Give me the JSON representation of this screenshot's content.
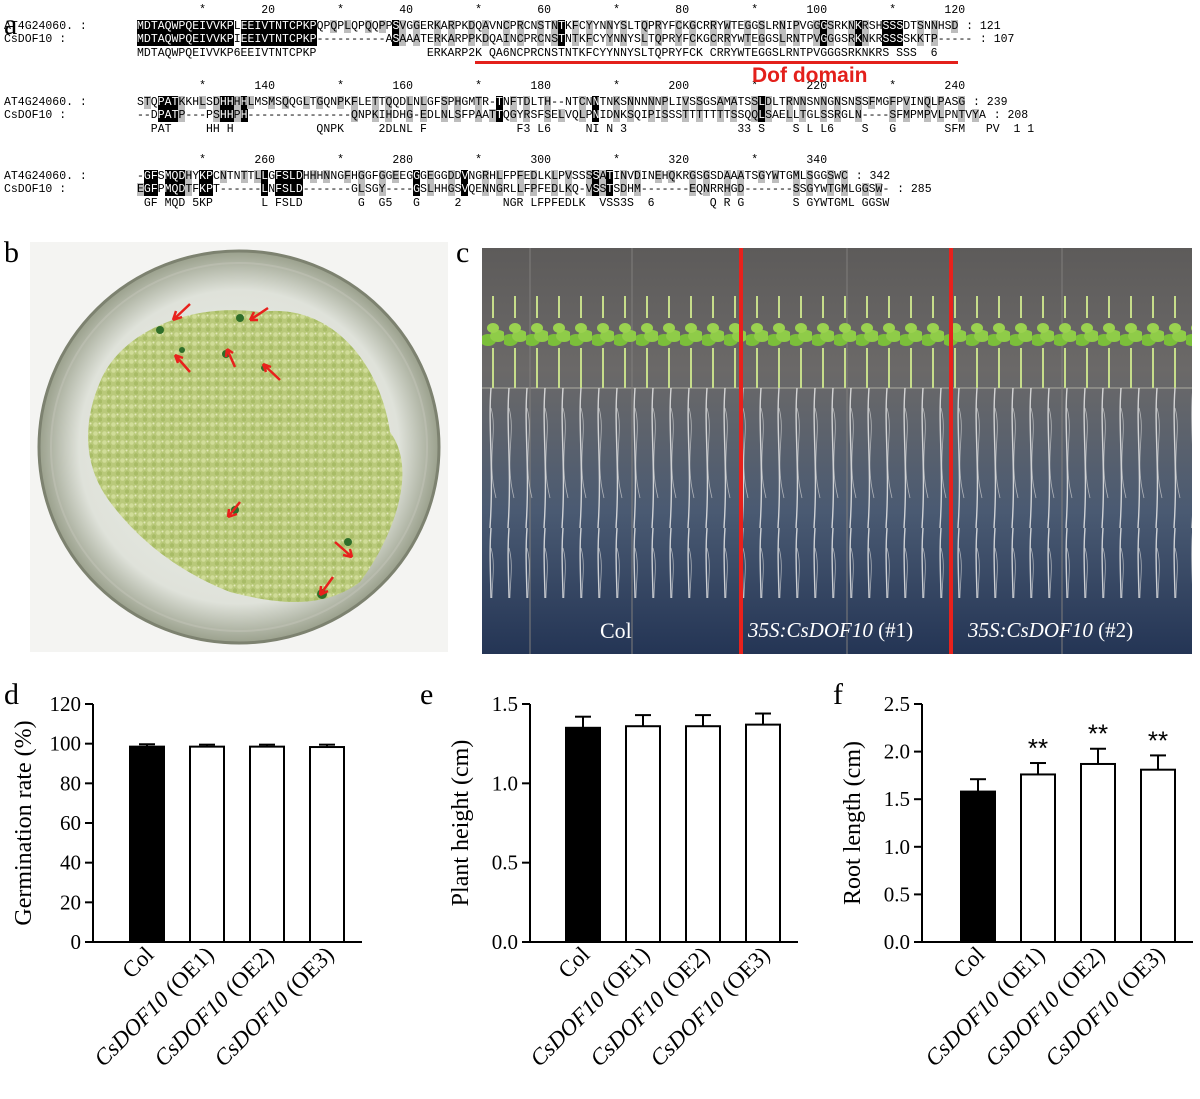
{
  "panels": {
    "a": "a",
    "b": "b",
    "c": "c",
    "d": "d",
    "e": "e",
    "f": "f"
  },
  "alignment": {
    "blocks": [
      {
        "ruler": "         *        20         *        40         *        60         *        80         *       100         *       120",
        "seq1_name": "AT4G24060.",
        "seq1": "MDTAQWPQEIVVKPLEEIVTNTCPKPQPQPLQPQQPPSVGGERKARPKDQAVNCPRCNSTNTKFCYYNNYSLTQPRYFCKGCRRYWTEGGSLRNIPVGGGSRKNKRSHSSSDTSNNHSD",
        "seq1_end": ": 121",
        "seq2_name": "CsDOF10",
        "seq2": "MDTAQWPQEIVVKPIEEIVTNTCPKP----------ASAAATERKARPPKDQAINCPRCNSTNTKFCYYNNYSLTQPRYFCKGCRRYWTEGGSLRNTPVGGGSRKNKRSSSSKKTP-----",
        "seq2_end": ": 107",
        "consensus": "MDTAQWPQEIVVKP6EEIVTNTCPKP                ERKARP2K QA6NCPRCNSTNTKFCYYNNYSLTQPRYFCK CRRYWTEGGSLRNTPVGGGSRKNKRS SSS  6"
      },
      {
        "ruler": "         *       140         *       160         *       180         *       200         *       220         *       240",
        "seq1_name": "AT4G24060.",
        "seq1": "STQPATKKHLSDHHHHLMSMSQQGLTGQNPKFLETTQQDLNLGFSPHGMTR-TNFTDLTH--NTCNNTNKSNNNNNPLIVSSGSAMATSSLDLTRNNSNNGNSNSSFMGFPVINQLPASG",
        "seq1_end": ": 239",
        "seq2_name": "CsDOF10",
        "seq2": "--DPATP---PSHHPH---------------QNPKIHDHG-EDLNLSFPAATTQGYRSFSELVQLPNIDNKSQIPISSSTTTTTTTSSQQLSAELLTGLSSRGLN----SFMPMPVLPNTVYA",
        "seq2_end": ": 208",
        "consensus": "  PAT     HH H            QNPK     2DLNL F             F3 L6     NI N 3                33 S    S L L6    S   G       SFM   PV  1 1"
      },
      {
        "ruler": "         *       260         *       280         *       300         *       320         *       340",
        "seq1_name": "AT4G24060.",
        "seq1": "-GFSMQDHYKPCNTNTTLLGFSLDHHHNNGFHGGFGGEEGGGEGGDDVNGRHLFPFEDLKLPVSSSSATINVDINEHQKRGSGSDAAATSGYWTGMLSGGSWC",
        "seq1_end": ": 342",
        "seq2_name": "CsDOF10",
        "seq2": "EGFPMQDTFKPT------LNFSLD-------GLSGY----GSLHHGSVQENNGRLLFPFEDLKQ-VSSTSDHM-------EQNRRHGD-------SSGYWTGMLGGSW-",
        "seq2_end": ": 285",
        "consensus": " GF MQD 5KP       L FSLD        G  G5   G     2      NGR LFPFEDLK  VSS3S  6        Q R G       S GYWTGML GGSW"
      }
    ],
    "domain_label": "Dof domain"
  },
  "photo_c_labels": {
    "col": "Col",
    "oe1_main": "35S:CsDOF10",
    "oe1_suffix": " (#1)",
    "oe2_main": "35S:CsDOF10",
    "oe2_suffix": " (#2)"
  },
  "chart_data": [
    {
      "type": "bar",
      "panel": "d",
      "categories": [
        "Col",
        "CsDOF10 (OE1)",
        "CsDOF10 (OE2)",
        "CsDOF10 (OE3)"
      ],
      "values": [
        98.5,
        98.5,
        98.5,
        98.3
      ],
      "errors": [
        1.2,
        1.0,
        1.0,
        1.2
      ],
      "fills": [
        "#000000",
        "#ffffff",
        "#ffffff",
        "#ffffff"
      ],
      "significance": [
        "",
        "",
        "",
        ""
      ],
      "ylabel": "Germination rate (%)",
      "ylim": [
        0,
        120
      ],
      "yticks": [
        0,
        20,
        40,
        60,
        80,
        100,
        120
      ],
      "ytick_labels": [
        "0",
        "20",
        "40",
        "60",
        "80",
        "100",
        "120"
      ]
    },
    {
      "type": "bar",
      "panel": "e",
      "categories": [
        "Col",
        "CsDOF10 (OE1)",
        "CsDOF10 (OE2)",
        "CsDOF10 (OE3)"
      ],
      "values": [
        1.35,
        1.36,
        1.36,
        1.37
      ],
      "errors": [
        0.07,
        0.07,
        0.07,
        0.07
      ],
      "fills": [
        "#000000",
        "#ffffff",
        "#ffffff",
        "#ffffff"
      ],
      "significance": [
        "",
        "",
        "",
        ""
      ],
      "ylabel": "Plant height (cm)",
      "ylim": [
        0,
        1.5
      ],
      "yticks": [
        0,
        0.5,
        1.0,
        1.5
      ],
      "ytick_labels": [
        "0.0",
        "0.5",
        "1.0",
        "1.5"
      ]
    },
    {
      "type": "bar",
      "panel": "f",
      "categories": [
        "Col",
        "CsDOF10 (OE1)",
        "CsDOF10 (OE2)",
        "CsDOF10 (OE3)"
      ],
      "values": [
        1.58,
        1.76,
        1.87,
        1.81
      ],
      "errors": [
        0.13,
        0.12,
        0.16,
        0.15
      ],
      "fills": [
        "#000000",
        "#ffffff",
        "#ffffff",
        "#ffffff"
      ],
      "significance": [
        "",
        "**",
        "**",
        "**"
      ],
      "ylabel": "Root length (cm)",
      "ylim": [
        0,
        2.5
      ],
      "yticks": [
        0,
        0.5,
        1.0,
        1.5,
        2.0,
        2.5
      ],
      "ytick_labels": [
        "0.0",
        "0.5",
        "1.0",
        "1.5",
        "2.0",
        "2.5"
      ]
    }
  ]
}
